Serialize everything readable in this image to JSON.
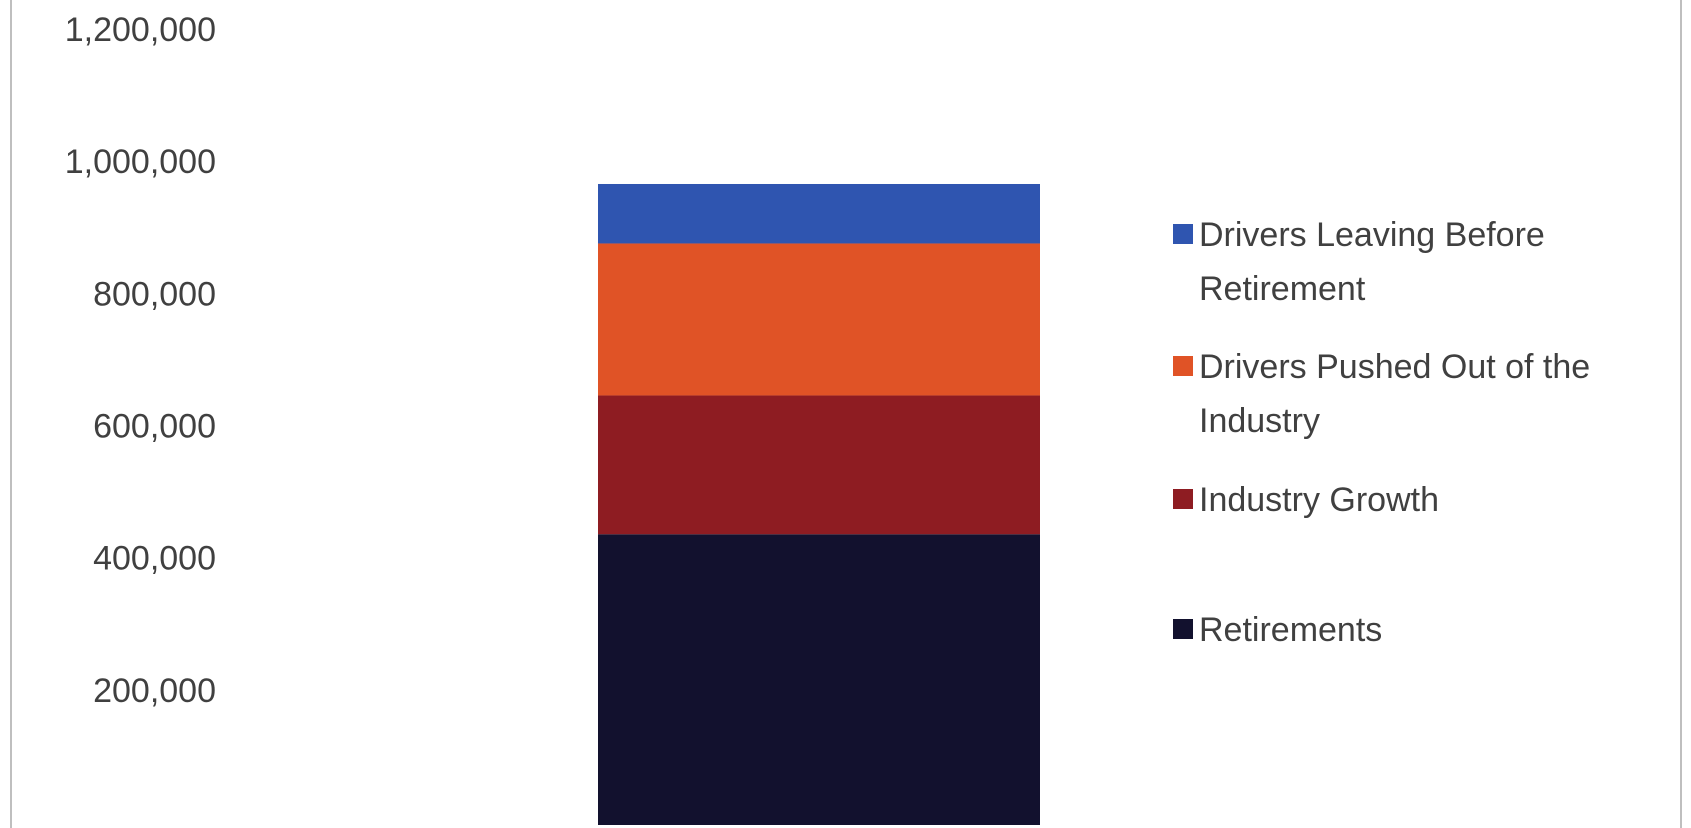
{
  "chart_data": {
    "type": "stacked_bar",
    "categories": [
      null
    ],
    "series": [
      {
        "name": "Retirements",
        "color": "#12112e",
        "values": [
          440000
        ]
      },
      {
        "name": "Industry Growth",
        "color": "#8e1c22",
        "values": [
          210000
        ]
      },
      {
        "name": "Drivers Pushed Out of the Industry",
        "color": "#e05326",
        "values": [
          230000
        ]
      },
      {
        "name": "Drivers Leaving Before Retirement",
        "color": "#2f55b0",
        "values": [
          90000
        ]
      }
    ],
    "ylim": [
      0,
      1200000
    ],
    "yticks": [
      {
        "value": 200000,
        "label": "200,000"
      },
      {
        "value": 400000,
        "label": "400,000"
      },
      {
        "value": 600000,
        "label": "600,000"
      },
      {
        "value": 800000,
        "label": "800,000"
      },
      {
        "value": 1000000,
        "label": "1,000,000"
      },
      {
        "value": 1200000,
        "label": "1,200,000"
      }
    ],
    "grid": false,
    "legend": "right"
  }
}
